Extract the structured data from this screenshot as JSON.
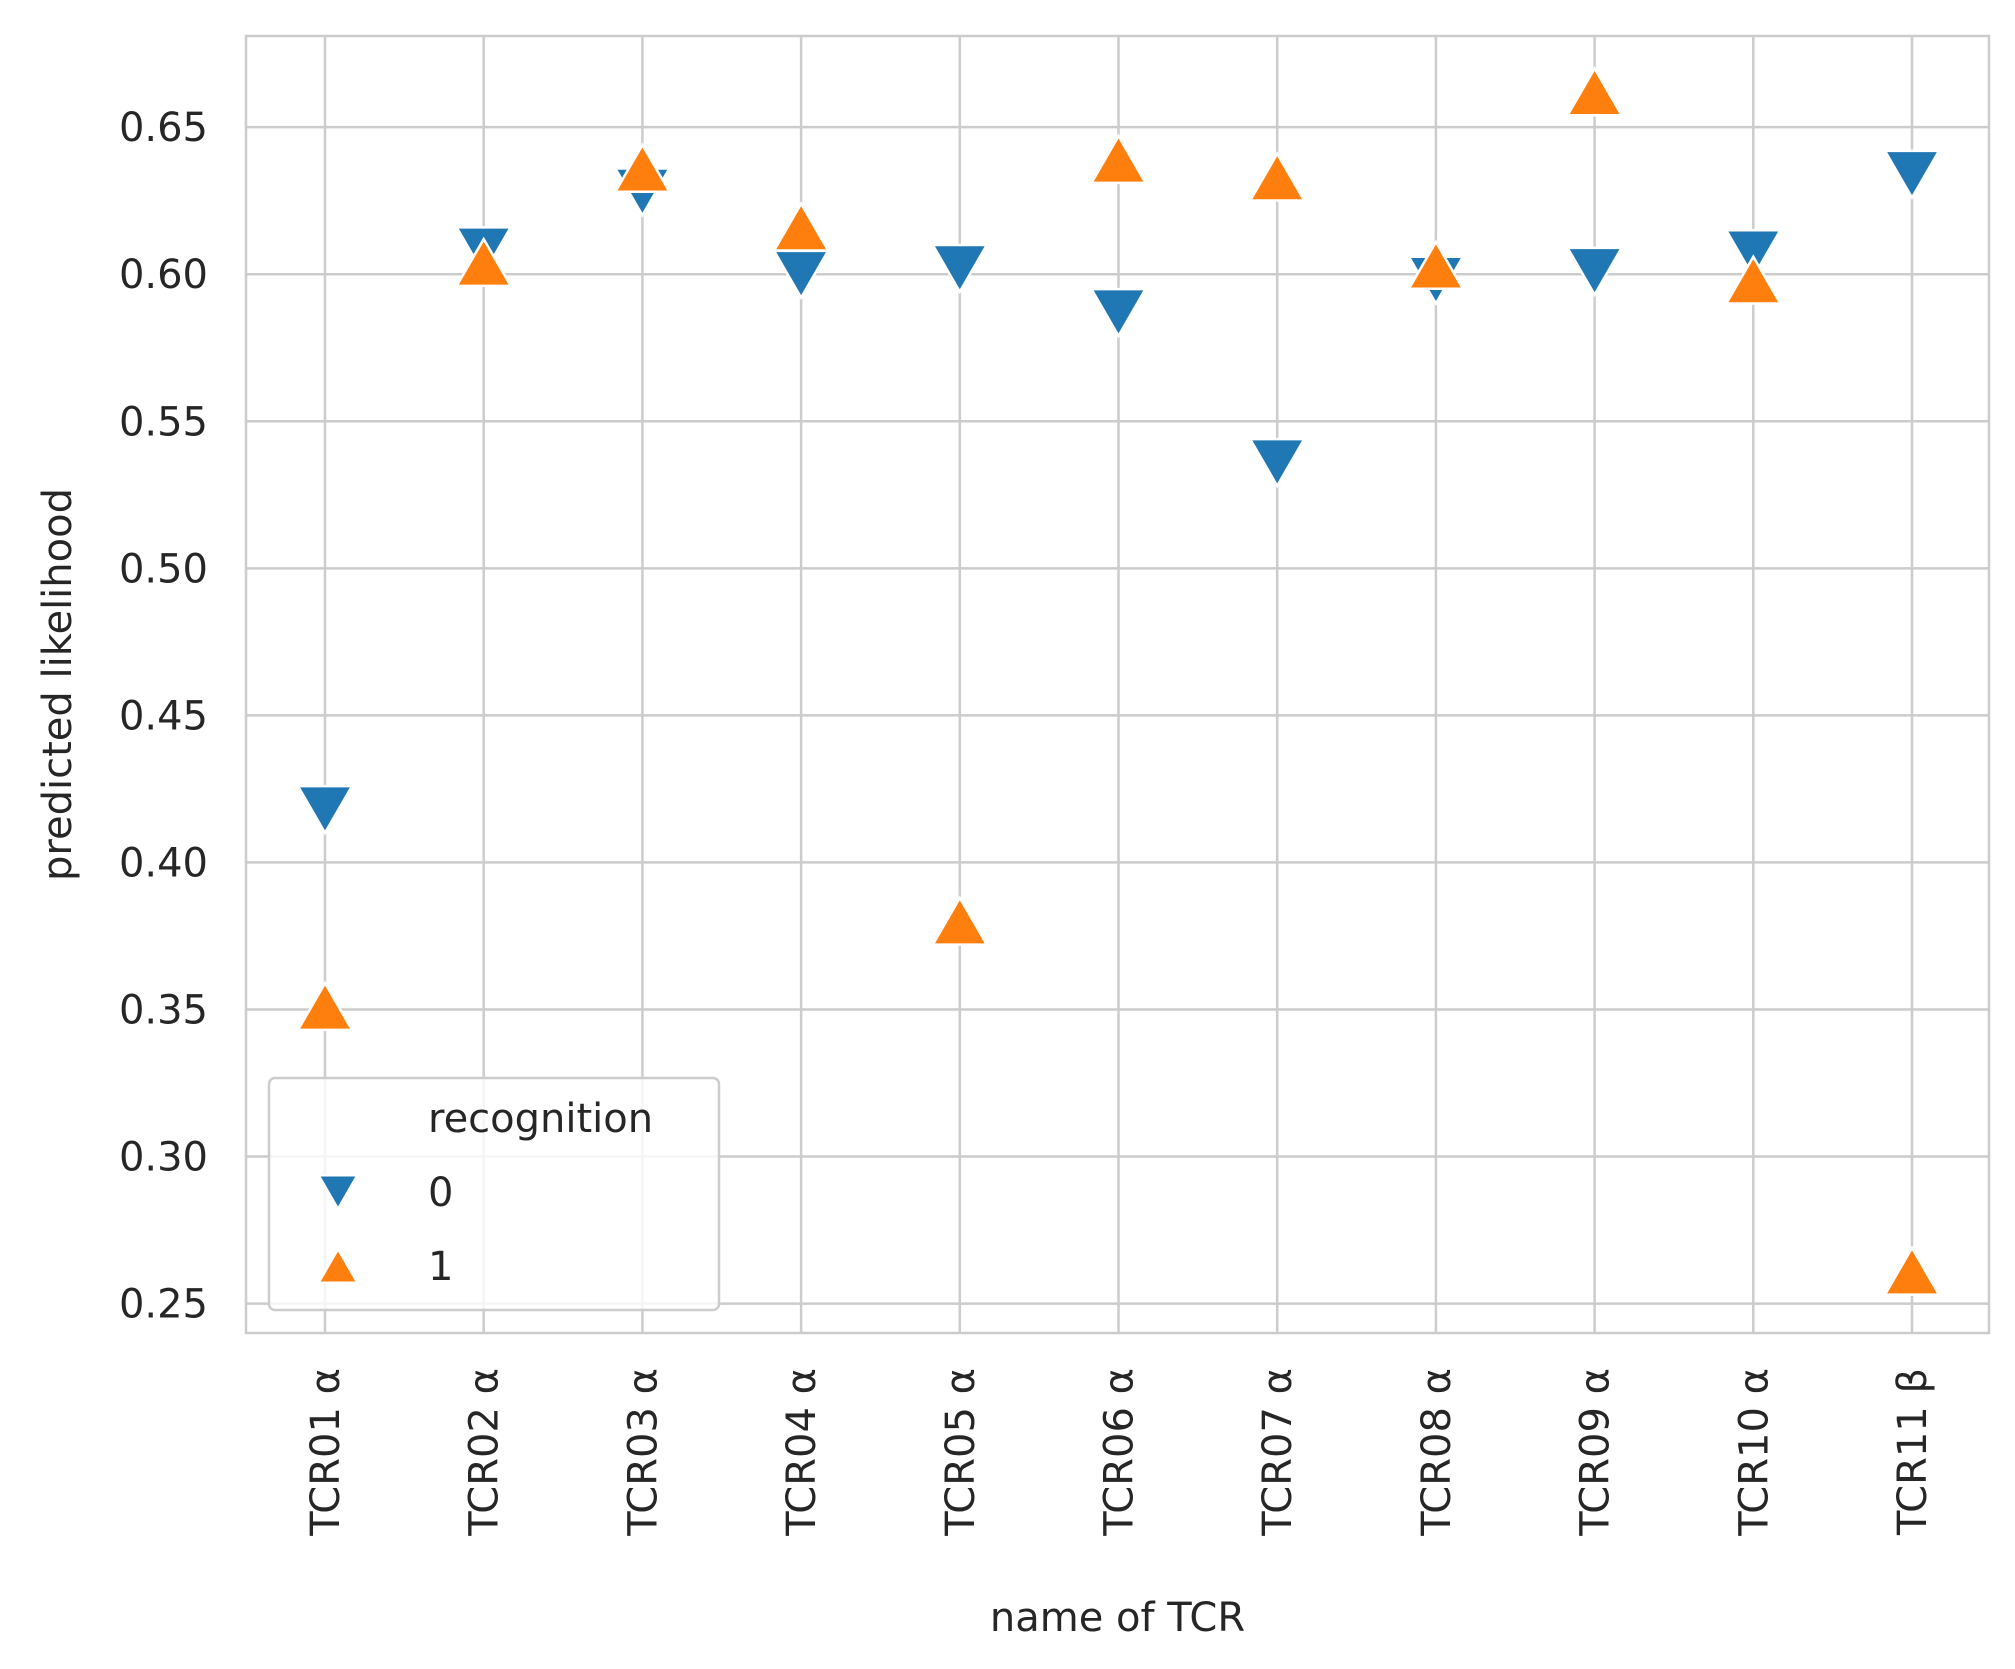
{
  "chart_data": {
    "type": "scatter",
    "xlabel": "name of TCR",
    "ylabel": "predicted likelihood",
    "categories": [
      "TCR01 α",
      "TCR02 α",
      "TCR03 α",
      "TCR04 α",
      "TCR05 α",
      "TCR06 α",
      "TCR07 α",
      "TCR08 α",
      "TCR09 α",
      "TCR10 α",
      "TCR11 β"
    ],
    "yticks": [
      "0.25",
      "0.30",
      "0.35",
      "0.40",
      "0.45",
      "0.50",
      "0.55",
      "0.60",
      "0.65"
    ],
    "ylim": [
      0.24,
      0.681
    ],
    "grid": true,
    "legend": {
      "title": "recognition",
      "placement": "lower-left"
    },
    "series": [
      {
        "name": "0",
        "marker": "triangle-down",
        "color": "#1f77b4",
        "values": [
          0.418,
          0.608,
          0.628,
          0.6,
          0.602,
          0.587,
          0.536,
          0.598,
          0.601,
          0.607,
          0.634
        ]
      },
      {
        "name": "1",
        "marker": "triangle-up",
        "color": "#ff7f0e",
        "values": [
          0.351,
          0.604,
          0.636,
          0.616,
          0.38,
          0.639,
          0.633,
          0.603,
          0.662,
          0.598,
          0.261
        ]
      }
    ]
  }
}
